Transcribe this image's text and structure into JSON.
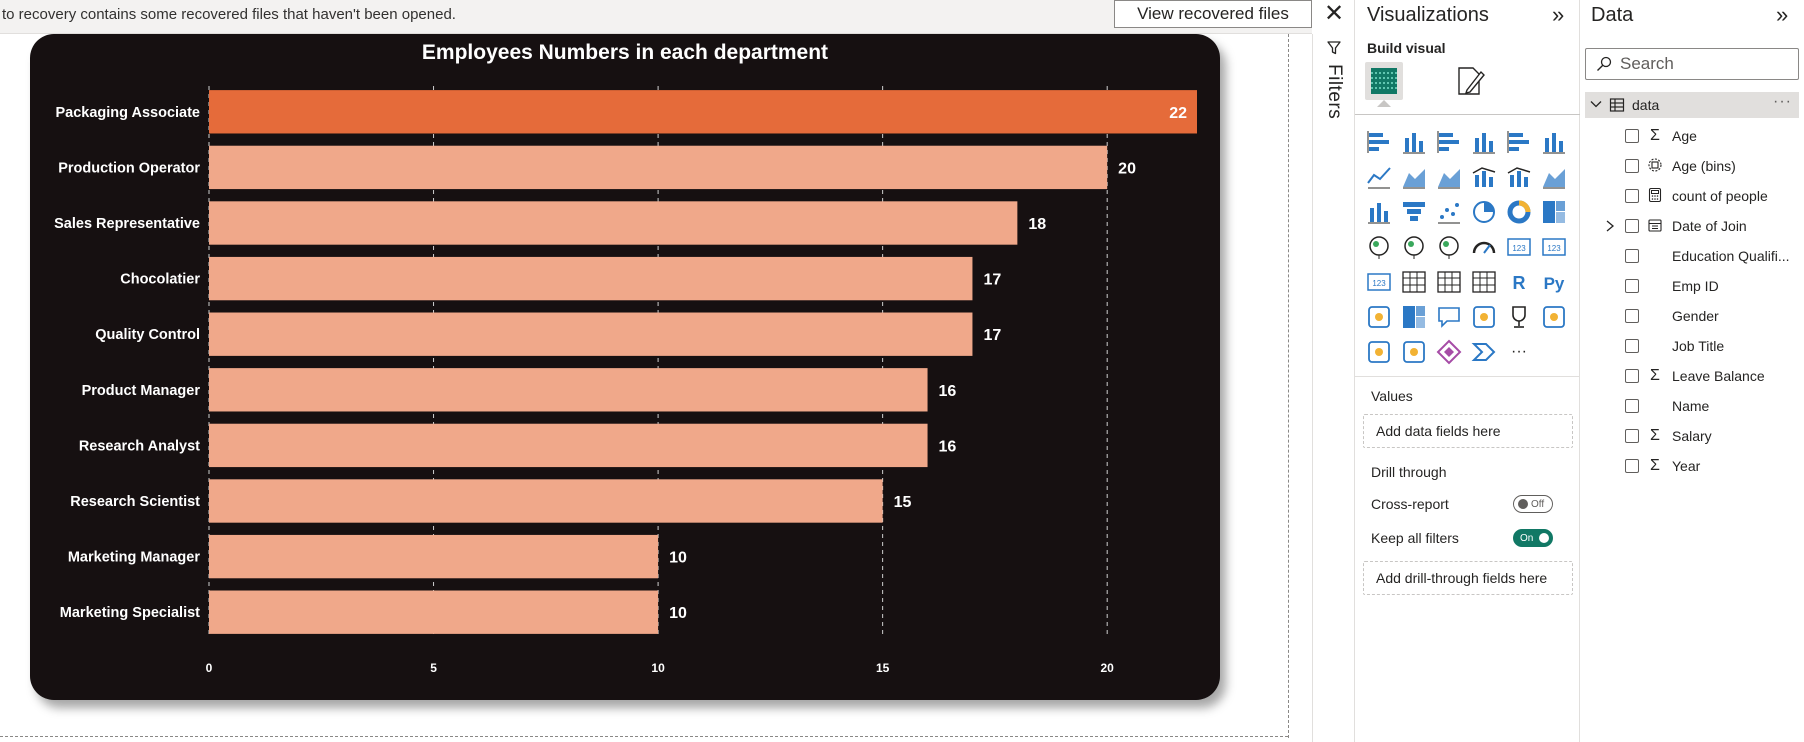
{
  "notice": {
    "text": "to recovery contains some recovered files that haven't been opened.",
    "button_label": "View recovered files",
    "close_glyph": "✕"
  },
  "chart_data": {
    "type": "bar",
    "orientation": "horizontal",
    "title": "Employees Numbers in each department",
    "categories": [
      "Packaging Associate",
      "Production Operator",
      "Sales Representative",
      "Chocolatier",
      "Quality Control",
      "Product Manager",
      "Research Analyst",
      "Research Scientist",
      "Marketing Manager",
      "Marketing Specialist"
    ],
    "values": [
      22,
      20,
      18,
      17,
      17,
      16,
      16,
      15,
      10,
      10
    ],
    "highlight_index": 0,
    "xlim": [
      0,
      22
    ],
    "xticks": [
      0,
      5,
      10,
      15,
      20
    ],
    "grid": "vertical-dashed",
    "colors": {
      "background": "#161011",
      "bar": "#f0a88a",
      "highlight": "#e56b3a",
      "text": "#ffffff",
      "grid": "#cfcfcf"
    }
  },
  "filters": {
    "label": "Filters",
    "icon": "filter-icon"
  },
  "visualizations": {
    "title": "Visualizations",
    "collapse_glyph": "»",
    "build_visual_label": "Build visual",
    "icons": [
      "stacked-bar-chart-icon",
      "stacked-column-chart-icon",
      "clustered-bar-chart-icon",
      "clustered-column-chart-icon",
      "100-stacked-bar-chart-icon",
      "100-stacked-column-chart-icon",
      "line-chart-icon",
      "area-chart-icon",
      "stacked-area-chart-icon",
      "line-and-column-chart-icon",
      "line-and-clustered-column-chart-icon",
      "ribbon-chart-icon",
      "waterfall-chart-icon",
      "funnel-chart-icon",
      "scatter-chart-icon",
      "pie-chart-icon",
      "donut-chart-icon",
      "treemap-icon",
      "map-icon",
      "filled-map-icon",
      "azure-map-icon",
      "gauge-icon",
      "card-icon",
      "multi-row-card-icon",
      "kpi-icon",
      "slicer-icon",
      "table-icon",
      "matrix-icon",
      "r-visual-icon",
      "python-visual-icon",
      "key-influencers-icon",
      "decomposition-tree-icon",
      "qa-icon",
      "smart-narrative-icon",
      "metrics-icon",
      "paginated-report-icon",
      "power-apps-icon",
      "power-automate-icon",
      "power-apps-diamond-icon",
      "power-automate-flow-icon",
      "more-visuals-icon"
    ],
    "more_glyph": "···",
    "values_label": "Values",
    "values_well": "Add data fields here",
    "drill_through_label": "Drill through",
    "cross_report_label": "Cross-report",
    "cross_report_state": "Off",
    "keep_filters_label": "Keep all filters",
    "keep_filters_state": "On",
    "drill_well": "Add drill-through fields here"
  },
  "data_pane": {
    "title": "Data",
    "collapse_glyph": "»",
    "search_placeholder": "Search",
    "table": {
      "name": "data",
      "more_glyph": "···"
    },
    "fields": [
      {
        "name": "Age",
        "icon": "sigma-icon",
        "glyph": "Σ",
        "expandable": false
      },
      {
        "name": "Age (bins)",
        "icon": "bins-icon",
        "glyph": "",
        "expandable": false
      },
      {
        "name": "count of people",
        "icon": "calculator-icon",
        "glyph": "",
        "expandable": false
      },
      {
        "name": "Date of Join",
        "icon": "calendar-icon",
        "glyph": "",
        "expandable": true
      },
      {
        "name": "Education Qualifi...",
        "icon": "none",
        "glyph": "",
        "expandable": false
      },
      {
        "name": "Emp ID",
        "icon": "none",
        "glyph": "",
        "expandable": false
      },
      {
        "name": "Gender",
        "icon": "none",
        "glyph": "",
        "expandable": false
      },
      {
        "name": "Job Title",
        "icon": "none",
        "glyph": "",
        "expandable": false
      },
      {
        "name": "Leave Balance",
        "icon": "sigma-icon",
        "glyph": "Σ",
        "expandable": false
      },
      {
        "name": "Name",
        "icon": "none",
        "glyph": "",
        "expandable": false
      },
      {
        "name": "Salary",
        "icon": "sigma-icon",
        "glyph": "Σ",
        "expandable": false
      },
      {
        "name": "Year",
        "icon": "sigma-icon",
        "glyph": "Σ",
        "expandable": false
      }
    ]
  }
}
